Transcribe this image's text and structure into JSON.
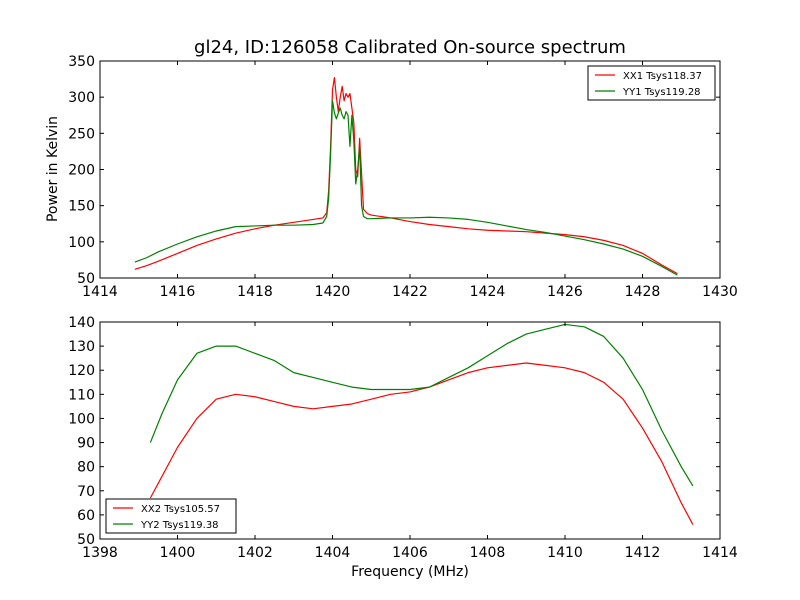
{
  "title": "gl24, ID:126058 Calibrated On-source spectrum",
  "ylabel": "Power in Kelvin",
  "xlabel": "Frequency (MHz)",
  "chart_data": [
    {
      "type": "line",
      "title": "gl24, ID:126058 Calibrated On-source spectrum",
      "xlabel": "",
      "ylabel": "Power in Kelvin",
      "xlim": [
        1414,
        1430
      ],
      "ylim": [
        50,
        350
      ],
      "xticks": [
        1414,
        1416,
        1418,
        1420,
        1422,
        1424,
        1426,
        1428,
        1430
      ],
      "yticks": [
        50,
        100,
        150,
        200,
        250,
        300,
        350
      ],
      "grid": false,
      "legend": "top-right",
      "series": [
        {
          "name": "XX1 Tsys118.37",
          "color": "#ff0000",
          "points": [
            [
              1414.9,
              62
            ],
            [
              1415.2,
              67
            ],
            [
              1415.5,
              73
            ],
            [
              1416.0,
              84
            ],
            [
              1416.5,
              95
            ],
            [
              1417.0,
              104
            ],
            [
              1417.5,
              112
            ],
            [
              1418.0,
              118
            ],
            [
              1418.5,
              123
            ],
            [
              1419.0,
              127
            ],
            [
              1419.5,
              131
            ],
            [
              1419.75,
              133
            ],
            [
              1419.85,
              140
            ],
            [
              1419.9,
              170
            ],
            [
              1419.95,
              230
            ],
            [
              1420.0,
              310
            ],
            [
              1420.05,
              327
            ],
            [
              1420.1,
              300
            ],
            [
              1420.15,
              280
            ],
            [
              1420.2,
              300
            ],
            [
              1420.25,
              315
            ],
            [
              1420.3,
              295
            ],
            [
              1420.35,
              305
            ],
            [
              1420.4,
              300
            ],
            [
              1420.45,
              305
            ],
            [
              1420.5,
              285
            ],
            [
              1420.55,
              265
            ],
            [
              1420.6,
              200
            ],
            [
              1420.65,
              190
            ],
            [
              1420.7,
              243
            ],
            [
              1420.75,
              195
            ],
            [
              1420.8,
              145
            ],
            [
              1420.9,
              139
            ],
            [
              1421.0,
              137
            ],
            [
              1421.5,
              133
            ],
            [
              1422.0,
              128
            ],
            [
              1422.5,
              124
            ],
            [
              1423.0,
              121
            ],
            [
              1423.5,
              118
            ],
            [
              1424.0,
              116
            ],
            [
              1424.5,
              115
            ],
            [
              1425.0,
              114
            ],
            [
              1425.5,
              112
            ],
            [
              1426.0,
              110
            ],
            [
              1426.5,
              107
            ],
            [
              1427.0,
              102
            ],
            [
              1427.5,
              95
            ],
            [
              1428.0,
              84
            ],
            [
              1428.5,
              68
            ],
            [
              1428.9,
              56
            ]
          ]
        },
        {
          "name": "YY1 Tsys119.28",
          "color": "#008000",
          "points": [
            [
              1414.9,
              72
            ],
            [
              1415.2,
              78
            ],
            [
              1415.5,
              86
            ],
            [
              1416.0,
              97
            ],
            [
              1416.5,
              107
            ],
            [
              1417.0,
              115
            ],
            [
              1417.5,
              121
            ],
            [
              1418.0,
              122
            ],
            [
              1418.5,
              123
            ],
            [
              1419.0,
              123
            ],
            [
              1419.5,
              124
            ],
            [
              1419.75,
              126
            ],
            [
              1419.85,
              135
            ],
            [
              1419.9,
              160
            ],
            [
              1419.95,
              220
            ],
            [
              1420.0,
              295
            ],
            [
              1420.05,
              278
            ],
            [
              1420.1,
              270
            ],
            [
              1420.15,
              278
            ],
            [
              1420.2,
              285
            ],
            [
              1420.25,
              275
            ],
            [
              1420.3,
              270
            ],
            [
              1420.35,
              280
            ],
            [
              1420.4,
              275
            ],
            [
              1420.45,
              232
            ],
            [
              1420.5,
              275
            ],
            [
              1420.55,
              240
            ],
            [
              1420.6,
              180
            ],
            [
              1420.65,
              200
            ],
            [
              1420.7,
              232
            ],
            [
              1420.75,
              150
            ],
            [
              1420.8,
              135
            ],
            [
              1420.9,
              132
            ],
            [
              1421.0,
              132
            ],
            [
              1421.5,
              133
            ],
            [
              1422.0,
              133
            ],
            [
              1422.5,
              134
            ],
            [
              1423.0,
              133
            ],
            [
              1423.5,
              131
            ],
            [
              1424.0,
              127
            ],
            [
              1424.5,
              122
            ],
            [
              1425.0,
              117
            ],
            [
              1425.5,
              113
            ],
            [
              1426.0,
              108
            ],
            [
              1426.5,
              103
            ],
            [
              1427.0,
              97
            ],
            [
              1427.5,
              90
            ],
            [
              1428.0,
              80
            ],
            [
              1428.5,
              66
            ],
            [
              1428.9,
              54
            ]
          ]
        }
      ]
    },
    {
      "type": "line",
      "title": "",
      "xlabel": "Frequency (MHz)",
      "ylabel": "",
      "xlim": [
        1398,
        1414
      ],
      "ylim": [
        50,
        140
      ],
      "xticks": [
        1398,
        1400,
        1402,
        1404,
        1406,
        1408,
        1410,
        1412,
        1414
      ],
      "yticks": [
        50,
        60,
        70,
        80,
        90,
        100,
        110,
        120,
        130,
        140
      ],
      "grid": false,
      "legend": "bottom-left",
      "series": [
        {
          "name": "XX2 Tsys105.57",
          "color": "#ff0000",
          "points": [
            [
              1399.3,
              67
            ],
            [
              1399.6,
              76
            ],
            [
              1400.0,
              88
            ],
            [
              1400.5,
              100
            ],
            [
              1401.0,
              108
            ],
            [
              1401.5,
              110
            ],
            [
              1402.0,
              109
            ],
            [
              1402.5,
              107
            ],
            [
              1403.0,
              105
            ],
            [
              1403.5,
              104
            ],
            [
              1404.0,
              105
            ],
            [
              1404.5,
              106
            ],
            [
              1405.0,
              108
            ],
            [
              1405.5,
              110
            ],
            [
              1406.0,
              111
            ],
            [
              1406.5,
              113
            ],
            [
              1407.0,
              116
            ],
            [
              1407.5,
              119
            ],
            [
              1408.0,
              121
            ],
            [
              1408.5,
              122
            ],
            [
              1409.0,
              123
            ],
            [
              1409.5,
              122
            ],
            [
              1410.0,
              121
            ],
            [
              1410.5,
              119
            ],
            [
              1411.0,
              115
            ],
            [
              1411.5,
              108
            ],
            [
              1412.0,
              96
            ],
            [
              1412.5,
              82
            ],
            [
              1413.0,
              65
            ],
            [
              1413.3,
              56
            ]
          ]
        },
        {
          "name": "YY2 Tsys119.38",
          "color": "#008000",
          "points": [
            [
              1399.3,
              90
            ],
            [
              1399.6,
              102
            ],
            [
              1400.0,
              116
            ],
            [
              1400.5,
              127
            ],
            [
              1401.0,
              130
            ],
            [
              1401.5,
              130
            ],
            [
              1402.0,
              127
            ],
            [
              1402.5,
              124
            ],
            [
              1403.0,
              119
            ],
            [
              1403.5,
              117
            ],
            [
              1404.0,
              115
            ],
            [
              1404.5,
              113
            ],
            [
              1405.0,
              112
            ],
            [
              1405.5,
              112
            ],
            [
              1406.0,
              112
            ],
            [
              1406.5,
              113
            ],
            [
              1407.0,
              117
            ],
            [
              1407.5,
              121
            ],
            [
              1408.0,
              126
            ],
            [
              1408.5,
              131
            ],
            [
              1409.0,
              135
            ],
            [
              1409.5,
              137
            ],
            [
              1410.0,
              139
            ],
            [
              1410.5,
              138
            ],
            [
              1411.0,
              134
            ],
            [
              1411.5,
              125
            ],
            [
              1412.0,
              112
            ],
            [
              1412.5,
              95
            ],
            [
              1413.0,
              80
            ],
            [
              1413.3,
              72
            ]
          ]
        }
      ]
    }
  ]
}
